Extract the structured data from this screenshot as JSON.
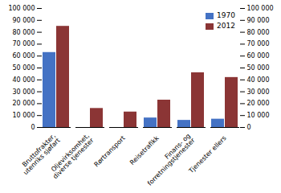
{
  "chart_data": {
    "type": "bar",
    "categories": [
      "Bruttofrakter,\nutenriks sjøfart",
      "Oljevirksomhet,\ndiverse tjenester",
      "Rørtransport",
      "Reisetrafikk",
      "Finans- og\nforretningstjenester",
      "Tjenester ellers"
    ],
    "series": [
      {
        "name": "1970",
        "color": "#4472C4",
        "values": [
          63000,
          0,
          0,
          8000,
          6000,
          7000
        ]
      },
      {
        "name": "2012",
        "color": "#8B3535",
        "values": [
          85000,
          16000,
          13000,
          23000,
          46000,
          42000
        ]
      }
    ],
    "ylim": [
      0,
      100000
    ],
    "yticks": [
      0,
      {
        "value": 10000,
        "label": "10 000"
      },
      {
        "value": 20000,
        "label": "20 000"
      },
      {
        "value": 30000,
        "label": "30 000"
      },
      {
        "value": 40000,
        "label": "40 000"
      },
      {
        "value": 50000,
        "label": "50 000"
      },
      {
        "value": 60000,
        "label": "60 000"
      },
      {
        "value": 70000,
        "label": "70 000"
      },
      {
        "value": 80000,
        "label": "80 000"
      },
      {
        "value": 90000,
        "label": "90 000"
      },
      {
        "value": 100000,
        "label": "100 000"
      }
    ],
    "grid": false,
    "legend": "upper right"
  }
}
